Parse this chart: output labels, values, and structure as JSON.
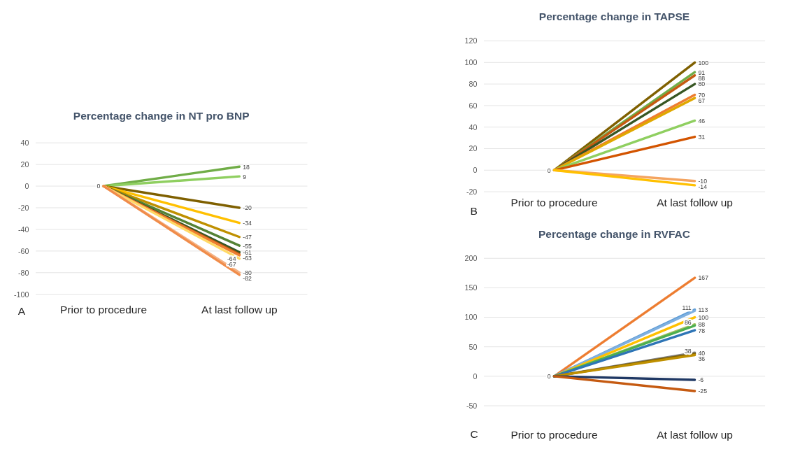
{
  "chart_data": [
    {
      "type": "line",
      "title": "Percentage change in NT pro BNP",
      "categories": [
        "Prior to procedure",
        "At last follow up"
      ],
      "ylim": [
        -100,
        40
      ],
      "yticks": [
        -100,
        -80,
        -60,
        -40,
        -20,
        0,
        20,
        40
      ],
      "grid": "y",
      "marker": "none",
      "annotations": [
        "A"
      ],
      "series": [
        {
          "color": "#70ad47",
          "values": [
            0,
            18
          ],
          "value_labels": [
            "0",
            "18"
          ]
        },
        {
          "color": "#8fcf60",
          "values": [
            0,
            9
          ],
          "value_labels": [
            null,
            "9"
          ]
        },
        {
          "color": "#7f6000",
          "values": [
            0,
            -20
          ],
          "value_labels": [
            null,
            "-20"
          ]
        },
        {
          "color": "#ffc000",
          "values": [
            0,
            -34
          ],
          "value_labels": [
            null,
            "-34"
          ]
        },
        {
          "color": "#bf9000",
          "values": [
            0,
            -47
          ],
          "value_labels": [
            null,
            "-47"
          ]
        },
        {
          "color": "#548235",
          "values": [
            0,
            -55
          ],
          "value_labels": [
            null,
            "-55"
          ]
        },
        {
          "color": "#375623",
          "values": [
            0,
            -61
          ],
          "value_labels": [
            null,
            "-61"
          ]
        },
        {
          "color": "#c55a11",
          "values": [
            0,
            -63
          ],
          "value_labels": [
            null,
            "-63"
          ]
        },
        {
          "color": "#ed7d31",
          "values": [
            0,
            -64
          ],
          "value_labels": [
            null,
            "-64"
          ]
        },
        {
          "color": "#ffd966",
          "values": [
            0,
            -67
          ],
          "value_labels": [
            null,
            "-67"
          ]
        },
        {
          "color": "#f4b183",
          "values": [
            0,
            -80
          ],
          "value_labels": [
            null,
            "-80"
          ]
        },
        {
          "color": "#f08c4a",
          "values": [
            0,
            -82
          ],
          "value_labels": [
            null,
            "-82"
          ]
        }
      ]
    },
    {
      "type": "line",
      "title": "Percentage change in TAPSE",
      "categories": [
        "Prior to procedure",
        "At last follow up"
      ],
      "ylim": [
        -20,
        120
      ],
      "yticks": [
        -20,
        0,
        20,
        40,
        60,
        80,
        100,
        120
      ],
      "grid": "y",
      "marker": "none",
      "annotations": [
        "B"
      ],
      "series": [
        {
          "color": "#7f6000",
          "values": [
            0,
            100
          ],
          "value_labels": [
            "0",
            "100"
          ]
        },
        {
          "color": "#70ad47",
          "values": [
            0,
            91
          ],
          "value_labels": [
            null,
            "91"
          ]
        },
        {
          "color": "#c55a11",
          "values": [
            0,
            88
          ],
          "value_labels": [
            null,
            "88"
          ]
        },
        {
          "color": "#375623",
          "values": [
            0,
            80
          ],
          "value_labels": [
            null,
            "80"
          ]
        },
        {
          "color": "#ed7d31",
          "values": [
            0,
            70
          ],
          "value_labels": [
            null,
            "70"
          ]
        },
        {
          "color": "#e0a800",
          "values": [
            0,
            67
          ],
          "value_labels": [
            null,
            "67"
          ]
        },
        {
          "color": "#8fcf60",
          "values": [
            0,
            46
          ],
          "value_labels": [
            null,
            "46"
          ]
        },
        {
          "color": "#d35400",
          "values": [
            0,
            31
          ],
          "value_labels": [
            null,
            "31"
          ]
        },
        {
          "color": "#f4a460",
          "values": [
            0,
            -10
          ],
          "value_labels": [
            null,
            "-10"
          ]
        },
        {
          "color": "#ffc000",
          "values": [
            0,
            -14
          ],
          "value_labels": [
            null,
            "-14"
          ]
        }
      ]
    },
    {
      "type": "line",
      "title": "Percentage change in RVFAC",
      "categories": [
        "Prior to procedure",
        "At last follow up"
      ],
      "ylim": [
        -50,
        200
      ],
      "yticks": [
        -50,
        0,
        50,
        100,
        150,
        200
      ],
      "grid": "y",
      "marker": "none",
      "annotations": [
        "C"
      ],
      "series": [
        {
          "color": "#ed7d31",
          "values": [
            0,
            167
          ],
          "value_labels": [
            "0",
            "167"
          ]
        },
        {
          "color": "#5b9bd5",
          "values": [
            0,
            113
          ],
          "value_labels": [
            null,
            "113"
          ]
        },
        {
          "color": "#7fb0e0",
          "values": [
            0,
            111
          ],
          "value_labels": [
            null,
            "111"
          ]
        },
        {
          "color": "#ffc000",
          "values": [
            0,
            100
          ],
          "value_labels": [
            null,
            "100"
          ]
        },
        {
          "color": "#a5c260",
          "values": [
            0,
            88
          ],
          "value_labels": [
            null,
            "88"
          ]
        },
        {
          "color": "#4caf50",
          "values": [
            0,
            86
          ],
          "value_labels": [
            null,
            "86"
          ]
        },
        {
          "color": "#2e75b6",
          "values": [
            0,
            78
          ],
          "value_labels": [
            null,
            "78"
          ]
        },
        {
          "color": "#808080",
          "values": [
            0,
            40
          ],
          "value_labels": [
            null,
            "40"
          ]
        },
        {
          "color": "#7f6000",
          "values": [
            0,
            38
          ],
          "value_labels": [
            null,
            "38"
          ]
        },
        {
          "color": "#bf9000",
          "values": [
            0,
            36
          ],
          "value_labels": [
            null,
            "36"
          ]
        },
        {
          "color": "#1f3864",
          "values": [
            0,
            -6
          ],
          "value_labels": [
            null,
            "-6"
          ]
        },
        {
          "color": "#c55a11",
          "values": [
            0,
            -25
          ],
          "value_labels": [
            null,
            "-25"
          ]
        }
      ]
    }
  ]
}
